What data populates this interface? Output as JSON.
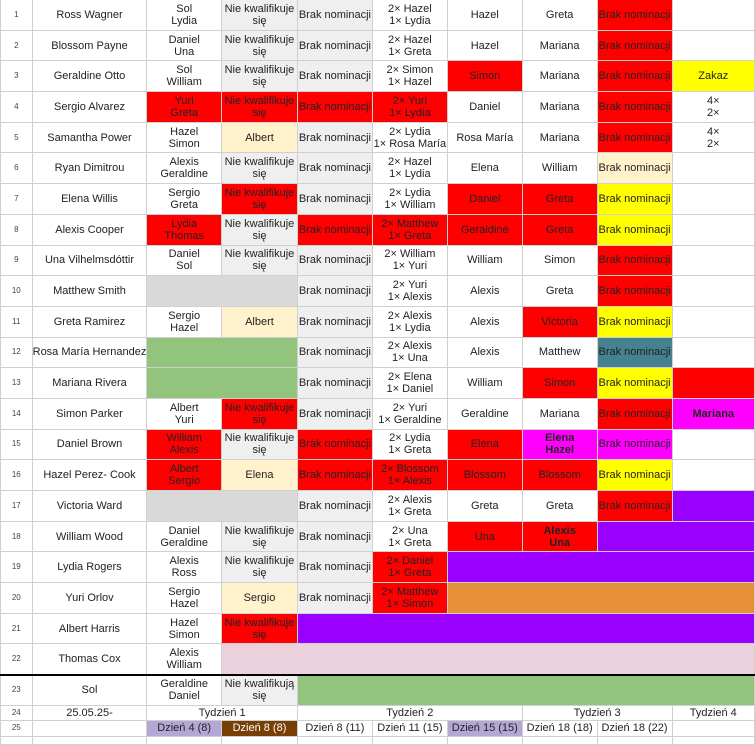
{
  "rows": [
    {
      "num": "1",
      "name": "Ross Wagner",
      "cells": [
        [
          "Sol",
          "Lydia"
        ],
        [
          "Nie kwalifikuje",
          "się"
        ],
        [
          "Brak nominacji"
        ],
        [
          "2× Hazel",
          "1× Lydia"
        ],
        [
          "Hazel"
        ],
        [
          "Greta"
        ],
        [
          "Brak nominacji"
        ],
        [
          ""
        ]
      ]
    },
    {
      "num": "2",
      "name": "Blossom Payne",
      "cells": [
        [
          "Daniel",
          "Una"
        ],
        [
          "Nie kwalifikuje",
          "się"
        ],
        [
          "Brak nominacji"
        ],
        [
          "2× Hazel",
          "1× Greta"
        ],
        [
          "Hazel"
        ],
        [
          "Mariana"
        ],
        [
          "Brak nominacji"
        ],
        [
          ""
        ]
      ]
    },
    {
      "num": "3",
      "name": "Geraldine Otto",
      "cells": [
        [
          "Sol",
          "William"
        ],
        [
          "Nie kwalifikuje",
          "się"
        ],
        [
          "Brak nominacji"
        ],
        [
          "2× Simon",
          "1× Hazel"
        ],
        [
          "Simon"
        ],
        [
          "Mariana"
        ],
        [
          "Brak nominacji"
        ],
        [
          "Zakaz"
        ]
      ]
    },
    {
      "num": "4",
      "name": "Sergio Alvarez",
      "cells": [
        [
          "Yuri",
          "Greta"
        ],
        [
          "Nie kwalifikuje",
          "się"
        ],
        [
          "Brak nominacji"
        ],
        [
          "2× Yuri",
          "1× Lydia"
        ],
        [
          "Daniel"
        ],
        [
          "Mariana"
        ],
        [
          "Brak nominacji"
        ],
        [
          "4×",
          "2×"
        ]
      ]
    },
    {
      "num": "5",
      "name": "Samantha Power",
      "cells": [
        [
          "Hazel",
          "Simon"
        ],
        [
          "Albert"
        ],
        [
          "Brak nominacji"
        ],
        [
          "2× Lydia",
          "1× Rosa María"
        ],
        [
          "Rosa María"
        ],
        [
          "Mariana"
        ],
        [
          "Brak nominacji"
        ],
        [
          "4×",
          "2×"
        ]
      ]
    },
    {
      "num": "6",
      "name": "Ryan Dimitrou",
      "cells": [
        [
          "Alexis",
          "Geraldine"
        ],
        [
          "Nie kwalifikuje",
          "się"
        ],
        [
          "Brak nominacji"
        ],
        [
          "2× Hazel",
          "1× Lydia"
        ],
        [
          "Elena"
        ],
        [
          "William"
        ],
        [
          "Brak nominacji"
        ],
        [
          ""
        ]
      ]
    },
    {
      "num": "7",
      "name": "Elena Willis",
      "cells": [
        [
          "Sergio",
          "Greta"
        ],
        [
          "Nie kwalifikuje",
          "się"
        ],
        [
          "Brak nominacji"
        ],
        [
          "2× Lydia",
          "1× William"
        ],
        [
          "Daniel"
        ],
        [
          "Greta"
        ],
        [
          "Brak nominacji"
        ],
        [
          ""
        ]
      ]
    },
    {
      "num": "8",
      "name": "Alexis Cooper",
      "cells": [
        [
          "Lydia",
          "Thomas"
        ],
        [
          "Nie kwalifikuje",
          "się"
        ],
        [
          "Brak nominacji"
        ],
        [
          "2× Matthew",
          "1× Greta"
        ],
        [
          "Geraldine"
        ],
        [
          "Greta"
        ],
        [
          "Brak nominacji"
        ],
        [
          ""
        ]
      ]
    },
    {
      "num": "9",
      "name": "Una Vilhelmsdóttir",
      "cells": [
        [
          "Daniel",
          "Sol"
        ],
        [
          "Nie kwalifikuje",
          "się"
        ],
        [
          "Brak nominacji"
        ],
        [
          "2× William",
          "1× Yuri"
        ],
        [
          "William"
        ],
        [
          "Simon"
        ],
        [
          "Brak nominacji"
        ],
        [
          ""
        ]
      ]
    },
    {
      "num": "10",
      "name": "Matthew Smith",
      "cells": [
        [
          ""
        ],
        [
          "Brak nominacji"
        ],
        [
          "2× Yuri",
          "1× Alexis"
        ],
        [
          "Alexis"
        ],
        [
          "Greta"
        ],
        [
          "Brak nominacji"
        ],
        [
          ""
        ]
      ]
    },
    {
      "num": "11",
      "name": "Greta Ramirez",
      "cells": [
        [
          "Sergio",
          "Hazel"
        ],
        [
          "Albert"
        ],
        [
          "Brak nominacji"
        ],
        [
          "2× Alexis",
          "1× Lydia"
        ],
        [
          "Alexis"
        ],
        [
          "Victoria"
        ],
        [
          "Brak nominacji"
        ],
        [
          ""
        ]
      ]
    },
    {
      "num": "12",
      "name": "Rosa María Hernandez",
      "cells": [
        [
          ""
        ],
        [
          "Brak nominacji"
        ],
        [
          "2× Alexis",
          "1× Una"
        ],
        [
          "Alexis"
        ],
        [
          "Matthew"
        ],
        [
          "Brak nominacji"
        ],
        [
          ""
        ]
      ]
    },
    {
      "num": "13",
      "name": "Mariana Rivera",
      "cells": [
        [
          ""
        ],
        [
          "Brak nominacji"
        ],
        [
          "2× Elena",
          "1× Daniel"
        ],
        [
          "William"
        ],
        [
          "Simon"
        ],
        [
          "Brak nominacji"
        ],
        [
          ""
        ]
      ]
    },
    {
      "num": "14",
      "name": "Simon Parker",
      "cells": [
        [
          "Albert",
          "Yuri"
        ],
        [
          "Nie kwalifikuje",
          "się"
        ],
        [
          "Brak nominacji"
        ],
        [
          "2× Yuri",
          "1× Geraldine"
        ],
        [
          "Geraldine"
        ],
        [
          "Mariana"
        ],
        [
          "Brak nominacji"
        ],
        [
          "Mariana"
        ]
      ]
    },
    {
      "num": "15",
      "name": "Daniel Brown",
      "cells": [
        [
          "William",
          "Alexis"
        ],
        [
          "Nie kwalifikuje",
          "się"
        ],
        [
          "Brak nominacji"
        ],
        [
          "2× Lydia",
          "1× Greta"
        ],
        [
          "Elena"
        ],
        [
          "Elena",
          "Hazel"
        ],
        [
          "Brak nominacji"
        ],
        [
          ""
        ]
      ]
    },
    {
      "num": "16",
      "name": "Hazel Perez- Cook",
      "cells": [
        [
          "Albert",
          "Sergio"
        ],
        [
          "Elena"
        ],
        [
          "Brak nominacji"
        ],
        [
          "2× Blossom",
          "1× Alexis"
        ],
        [
          "Blossom"
        ],
        [
          "Blossom"
        ],
        [
          "Brak nominacji"
        ],
        [
          ""
        ]
      ]
    },
    {
      "num": "17",
      "name": "Victoria Ward",
      "cells": [
        [
          ""
        ],
        [
          "Brak nominacji"
        ],
        [
          "2× Alexis",
          "1× Greta"
        ],
        [
          "Greta"
        ],
        [
          "Greta"
        ],
        [
          "Brak nominacji"
        ],
        [
          ""
        ]
      ]
    },
    {
      "num": "18",
      "name": "William Wood",
      "cells": [
        [
          "Daniel",
          "Geraldine"
        ],
        [
          "Nie kwalifikuje",
          "się"
        ],
        [
          "Brak nominacji"
        ],
        [
          "2× Una",
          "1× Greta"
        ],
        [
          "Una"
        ],
        [
          "Alexis",
          "Una"
        ],
        [
          ""
        ]
      ]
    },
    {
      "num": "19",
      "name": "Lydia Rogers",
      "cells": [
        [
          "Alexis",
          "Ross"
        ],
        [
          "Nie kwalifikuje",
          "się"
        ],
        [
          "Brak nominacji"
        ],
        [
          "2× Daniel",
          "1× Greta"
        ],
        [
          ""
        ]
      ]
    },
    {
      "num": "20",
      "name": "Yuri Orlov",
      "cells": [
        [
          "Sergio",
          "Hazel"
        ],
        [
          "Sergio"
        ],
        [
          "Brak nominacji"
        ],
        [
          "2× Matthew",
          "1× Simon"
        ],
        [
          ""
        ]
      ]
    },
    {
      "num": "21",
      "name": "Albert Harris",
      "cells": [
        [
          "Hazel",
          "Simon"
        ],
        [
          "Nie kwalifikuje",
          "się"
        ],
        [
          ""
        ]
      ]
    },
    {
      "num": "22",
      "name": "Thomas Cox",
      "cells": [
        [
          "Alexis",
          "William"
        ],
        [
          ""
        ]
      ]
    },
    {
      "num": "23",
      "name": "Sol",
      "cells": [
        [
          "Geraldine",
          "Daniel"
        ],
        [
          "Nie kwalifikują",
          "się"
        ],
        [
          ""
        ]
      ]
    }
  ],
  "week_row": {
    "num": "24",
    "date": "25.05.25-",
    "weeks": [
      "Tydzień 1",
      "Tydzień 2",
      "Tydzień 3",
      "Tydzień 4"
    ]
  },
  "day_row": {
    "num": "25",
    "days": [
      "Dzień 4 (8)",
      "Dzień 8 (8)",
      "Dzień 8 (11)",
      "Dzień 11 (15)",
      "Dzień 15 (15)",
      "Dzień 18 (18)",
      "Dzień 18 (22)"
    ]
  },
  "colors": {
    "red": "#ff0000",
    "gray": "#efefef",
    "cream": "#fff2cc",
    "green": "#93c47d",
    "yellow": "#ffff00",
    "teal": "#45818e",
    "magenta": "#ff00ff",
    "purple": "#9900ff",
    "orange": "#e69138",
    "pink": "#ead1dc",
    "lavender": "#b4a7d6",
    "brown": "#783f04"
  }
}
